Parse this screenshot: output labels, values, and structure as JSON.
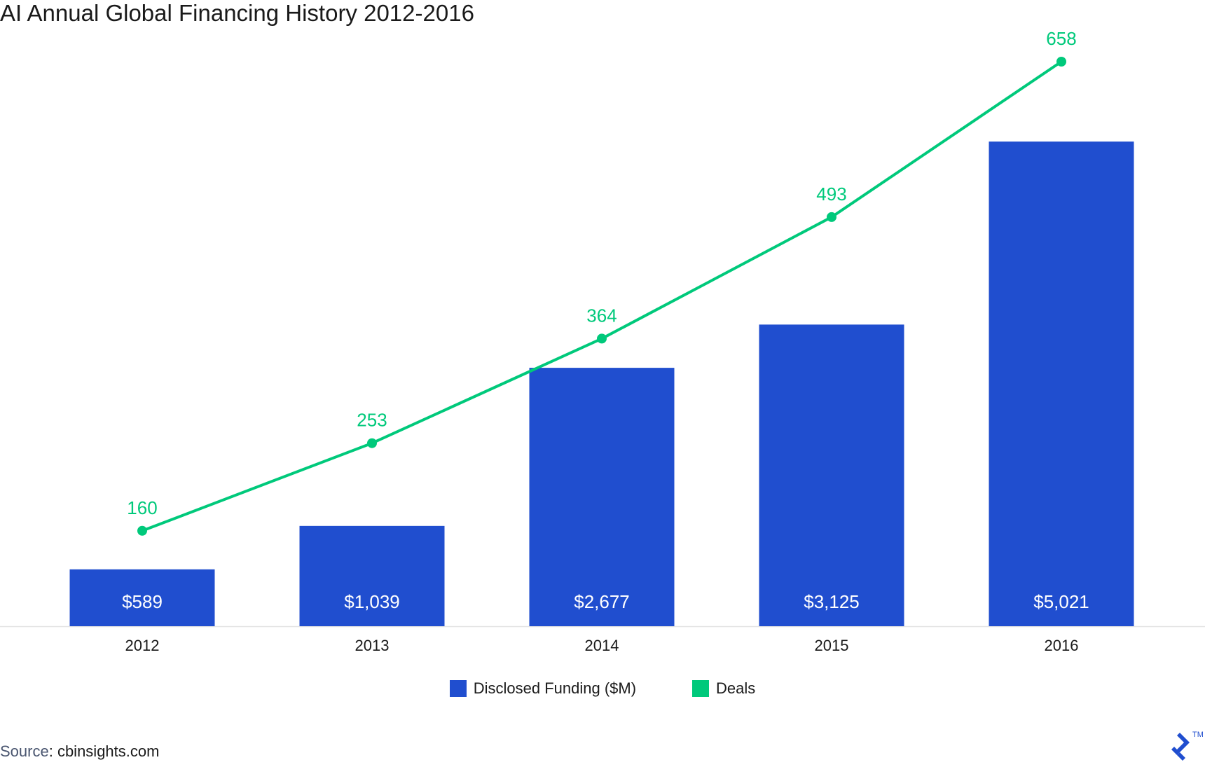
{
  "title": "AI Annual Global Financing History 2012-2016",
  "chart_data": {
    "type": "bar",
    "title": "AI Annual Global Financing History 2012-2016",
    "categories": [
      "2012",
      "2013",
      "2014",
      "2015",
      "2016"
    ],
    "series": [
      {
        "name": "Disclosed Funding ($M)",
        "type": "bar",
        "color": "#204ecf",
        "values": [
          589,
          1039,
          2677,
          3125,
          5021
        ],
        "labels": [
          "$589",
          "$1,039",
          "$2,677",
          "$3,125",
          "$5,021"
        ]
      },
      {
        "name": "Deals",
        "type": "line",
        "color": "#00c97b",
        "values": [
          160,
          253,
          364,
          493,
          658
        ],
        "labels": [
          "160",
          "253",
          "364",
          "493",
          "658"
        ]
      }
    ],
    "grid": false,
    "legend": "bottom-center"
  },
  "source": {
    "label": "Source",
    "value": ": cbinsights.com"
  },
  "logo": {
    "tm": "TM"
  }
}
